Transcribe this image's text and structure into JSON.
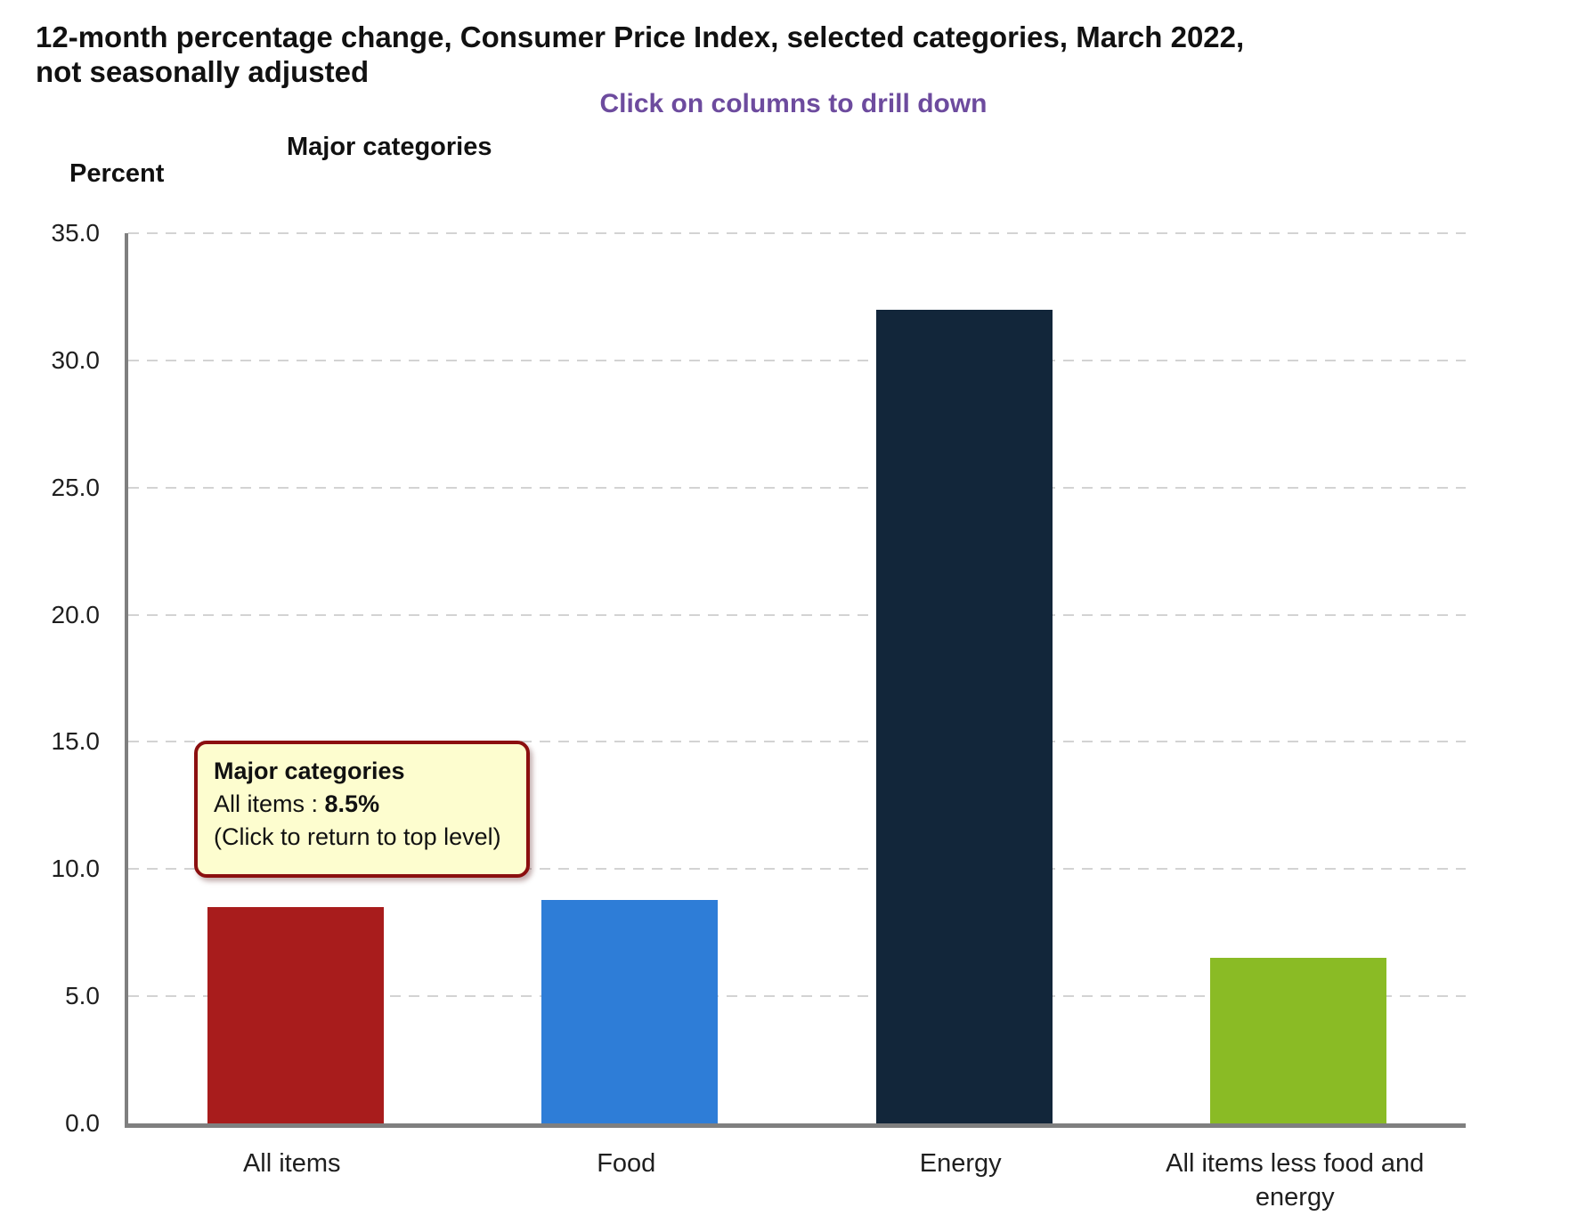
{
  "page": {
    "title_line1": "12-month percentage change, Consumer Price Index, selected categories, March 2022,",
    "title_line2": "not seasonally adjusted",
    "banner": "Click on columns to drill down",
    "chart_header": "Major categories",
    "y_axis_title": "Percent"
  },
  "chart_data": {
    "type": "bar",
    "title": "12-month percentage change, Consumer Price Index, selected categories, March 2022, not seasonally adjusted",
    "subtitle": "Major categories",
    "annotation": "Click on columns to drill down",
    "categories": [
      "All items",
      "Food",
      "Energy",
      "All items less food and energy"
    ],
    "values": [
      8.5,
      8.8,
      32.0,
      6.5
    ],
    "colors": [
      "#a81c1c",
      "#2e7dd7",
      "#12263a",
      "#8abb25"
    ],
    "xlabel": "",
    "ylabel": "Percent",
    "ylim": [
      0,
      35
    ],
    "yticks": [
      35.0,
      30.0,
      25.0,
      20.0,
      15.0,
      10.0,
      5.0,
      0.0
    ],
    "grid": "horizontal-dashed",
    "legend": "none",
    "accent_colors": {
      "banner_purple": "#6d4b9e",
      "axis_gray": "#7f7f7f",
      "gridline_gray": "#d3d3d3"
    }
  },
  "tooltip": {
    "title": "Major categories",
    "item_label": "All items : ",
    "item_value": "8.5%",
    "note": "(Click to return to top level)",
    "background": "#fdfdcf",
    "border_color": "#8b0f0f"
  }
}
